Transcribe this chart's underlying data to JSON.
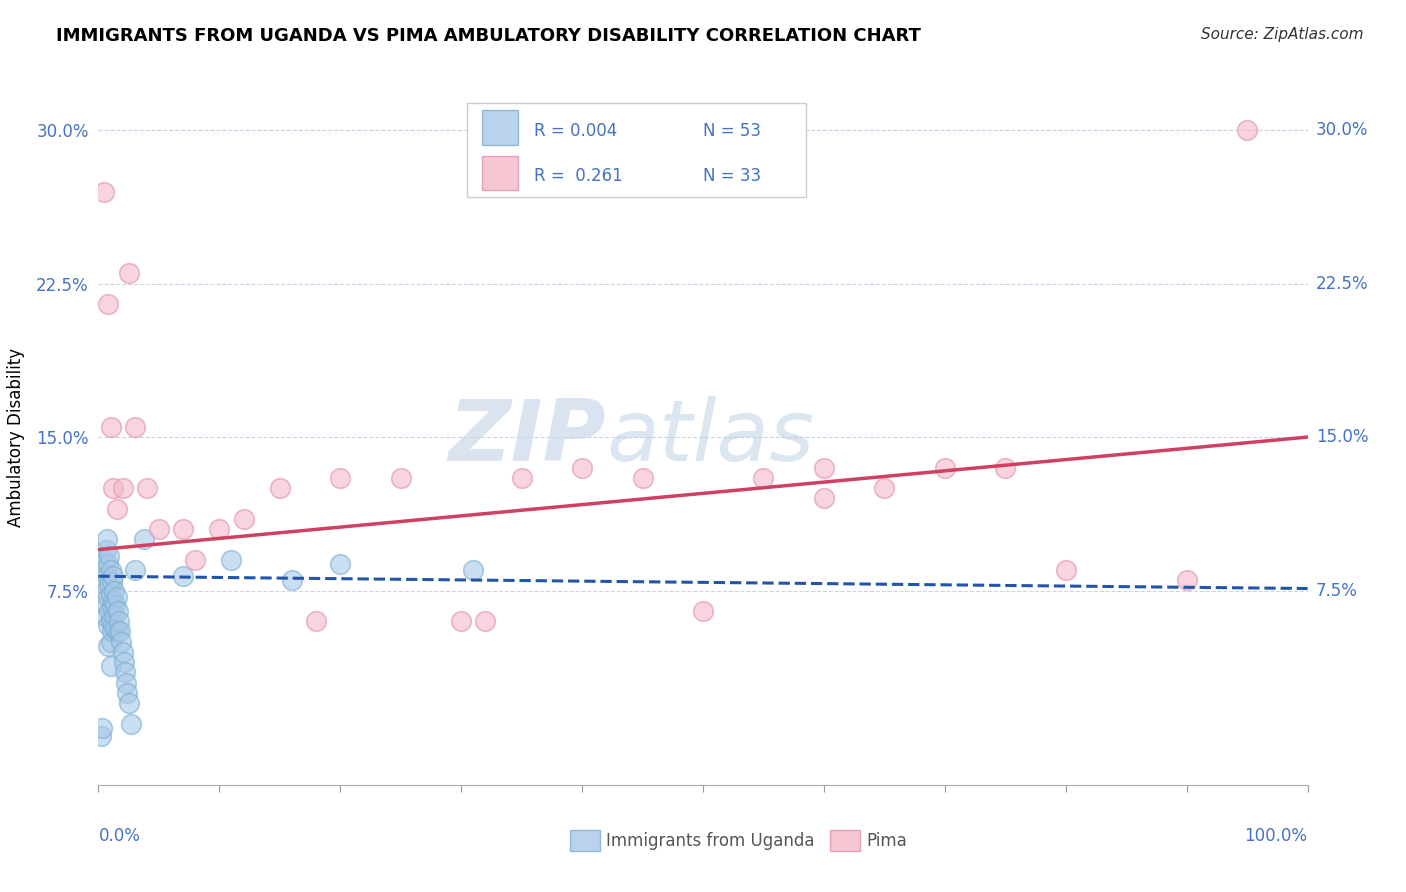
{
  "title": "IMMIGRANTS FROM UGANDA VS PIMA AMBULATORY DISABILITY CORRELATION CHART",
  "source": "Source: ZipAtlas.com",
  "ylabel": "Ambulatory Disability",
  "yticks": [
    0.0,
    0.075,
    0.15,
    0.225,
    0.3
  ],
  "ytick_labels": [
    "",
    "7.5%",
    "15.0%",
    "22.5%",
    "30.0%"
  ],
  "xlim": [
    0.0,
    1.0
  ],
  "ylim": [
    -0.02,
    0.32
  ],
  "legend_r1": "R = 0.004",
  "legend_n1": "N = 53",
  "legend_r2": "R =  0.261",
  "legend_n2": "N = 33",
  "watermark_zip": "ZIP",
  "watermark_atlas": "atlas",
  "blue_color": "#a8c8e8",
  "pink_color": "#f4b8c8",
  "blue_edge_color": "#7aaed0",
  "pink_edge_color": "#e090a8",
  "blue_line_color": "#2255aa",
  "pink_line_color": "#d04060",
  "blue_scatter_x": [
    0.004,
    0.005,
    0.005,
    0.006,
    0.006,
    0.006,
    0.007,
    0.007,
    0.007,
    0.008,
    0.008,
    0.008,
    0.008,
    0.009,
    0.009,
    0.009,
    0.01,
    0.01,
    0.01,
    0.01,
    0.01,
    0.011,
    0.011,
    0.011,
    0.012,
    0.012,
    0.012,
    0.013,
    0.013,
    0.014,
    0.014,
    0.015,
    0.016,
    0.016,
    0.017,
    0.018,
    0.019,
    0.02,
    0.021,
    0.022,
    0.023,
    0.024,
    0.025,
    0.027,
    0.03,
    0.038,
    0.07,
    0.11,
    0.16,
    0.2,
    0.31,
    0.002,
    0.003
  ],
  "blue_scatter_y": [
    0.085,
    0.09,
    0.078,
    0.095,
    0.075,
    0.062,
    0.1,
    0.082,
    0.068,
    0.088,
    0.072,
    0.058,
    0.048,
    0.092,
    0.078,
    0.065,
    0.085,
    0.073,
    0.06,
    0.05,
    0.038,
    0.079,
    0.067,
    0.055,
    0.082,
    0.07,
    0.058,
    0.075,
    0.063,
    0.068,
    0.056,
    0.072,
    0.065,
    0.055,
    0.06,
    0.055,
    0.05,
    0.045,
    0.04,
    0.035,
    0.03,
    0.025,
    0.02,
    0.01,
    0.085,
    0.1,
    0.082,
    0.09,
    0.08,
    0.088,
    0.085,
    0.004,
    0.008
  ],
  "pink_scatter_x": [
    0.005,
    0.008,
    0.01,
    0.012,
    0.015,
    0.02,
    0.025,
    0.03,
    0.04,
    0.05,
    0.07,
    0.08,
    0.1,
    0.12,
    0.15,
    0.18,
    0.2,
    0.25,
    0.3,
    0.32,
    0.35,
    0.4,
    0.45,
    0.5,
    0.55,
    0.6,
    0.6,
    0.65,
    0.7,
    0.75,
    0.8,
    0.9,
    0.95
  ],
  "pink_scatter_y": [
    0.27,
    0.215,
    0.155,
    0.125,
    0.115,
    0.125,
    0.23,
    0.155,
    0.125,
    0.105,
    0.105,
    0.09,
    0.105,
    0.11,
    0.125,
    0.06,
    0.13,
    0.13,
    0.06,
    0.06,
    0.13,
    0.135,
    0.13,
    0.065,
    0.13,
    0.135,
    0.12,
    0.125,
    0.135,
    0.135,
    0.085,
    0.08,
    0.3
  ],
  "blue_trend_x": [
    0.0,
    1.0
  ],
  "blue_trend_y": [
    0.082,
    0.076
  ],
  "pink_trend_x": [
    0.0,
    1.0
  ],
  "pink_trend_y": [
    0.095,
    0.15
  ]
}
